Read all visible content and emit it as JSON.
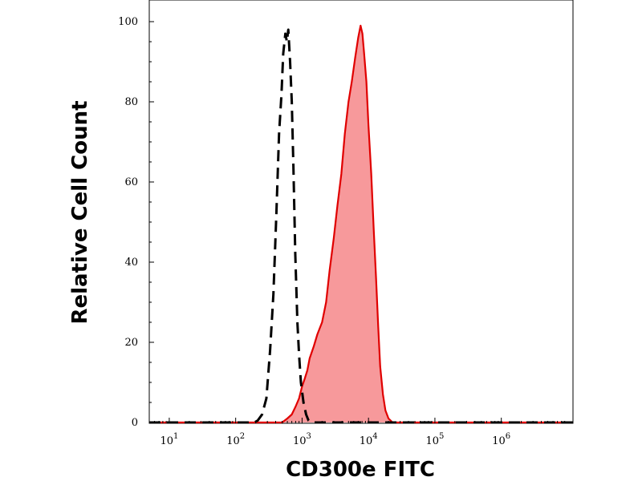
{
  "chart_data": {
    "type": "area",
    "title": "",
    "xlabel": "CD300e FITC",
    "ylabel": "Relative Cell Count",
    "x_scale": "log",
    "xlim": [
      5,
      12000000
    ],
    "ylim": [
      0,
      100
    ],
    "x_tick_base": "10",
    "x_ticks": [
      {
        "value": 10,
        "exp": "1"
      },
      {
        "value": 100,
        "exp": "2"
      },
      {
        "value": 1000,
        "exp": "3"
      },
      {
        "value": 10000,
        "exp": "4"
      },
      {
        "value": 100000,
        "exp": "5"
      },
      {
        "value": 1000000,
        "exp": "6"
      }
    ],
    "y_ticks": [
      {
        "value": 0,
        "label": "0"
      },
      {
        "value": 20,
        "label": "20"
      },
      {
        "value": 40,
        "label": "40"
      },
      {
        "value": 60,
        "label": "60"
      },
      {
        "value": 80,
        "label": "80"
      },
      {
        "value": 100,
        "label": "100"
      }
    ],
    "grid": false,
    "legend": "none",
    "series": [
      {
        "style": "dashed-outline",
        "color": "#000000",
        "x": [
          5,
          130,
          160,
          190,
          215,
          250,
          290,
          330,
          370,
          410,
          450,
          490,
          520,
          560,
          590,
          620,
          660,
          700,
          740,
          790,
          850,
          900,
          960,
          1050,
          1150,
          1250,
          1400,
          2000,
          12000000
        ],
        "y": [
          0,
          0,
          0,
          0,
          0.5,
          2,
          6,
          18,
          32,
          52,
          72,
          82,
          92,
          97,
          95,
          98,
          90,
          80,
          64,
          42,
          25,
          17,
          10,
          5,
          2,
          0.5,
          0,
          0,
          0
        ]
      },
      {
        "style": "filled",
        "color": "#e00000",
        "fill": "#f7999b",
        "x": [
          5,
          500,
          600,
          700,
          800,
          900,
          1000,
          1100,
          1200,
          1300,
          1500,
          1700,
          2000,
          2300,
          2600,
          3000,
          3400,
          3900,
          4400,
          5000,
          5600,
          6300,
          7000,
          7600,
          8100,
          8600,
          9300,
          10000,
          11000,
          12000,
          13000,
          14000,
          15000,
          16500,
          18000,
          20000,
          21500,
          23000,
          25000,
          30000,
          12000000
        ],
        "y": [
          0,
          0,
          1,
          2,
          4,
          6,
          9,
          11,
          13,
          16,
          19,
          22,
          25,
          30,
          38,
          46,
          54,
          62,
          72,
          80,
          85,
          91,
          96,
          99,
          97,
          92,
          85,
          74,
          62,
          48,
          36,
          24,
          14,
          7,
          3,
          1,
          0.5,
          0,
          0,
          0,
          0
        ]
      }
    ]
  }
}
